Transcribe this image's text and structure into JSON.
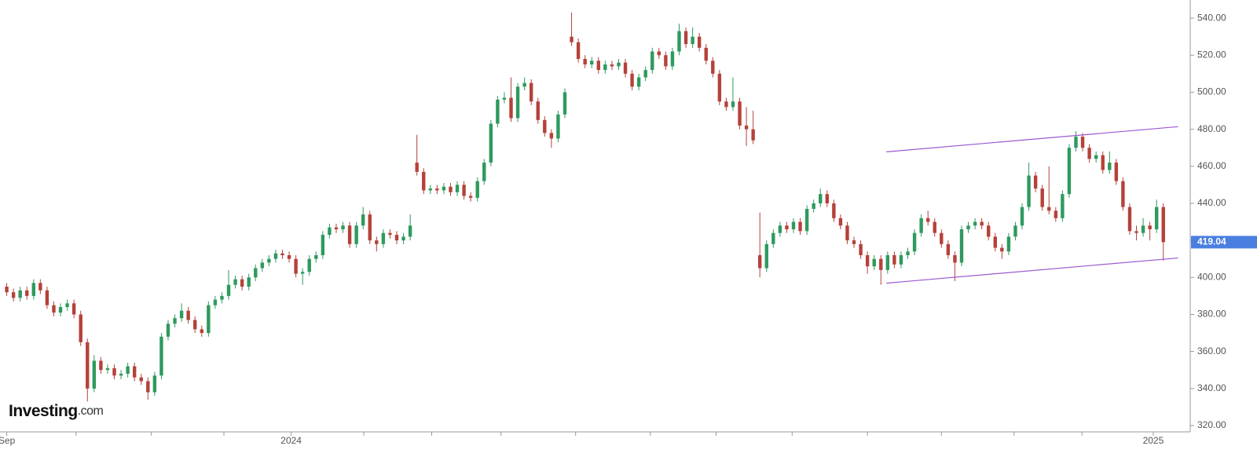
{
  "chart_data": {
    "type": "candlestick",
    "logo": {
      "name": "Investing",
      "suffix": ".com"
    },
    "up_color": "#2e9a5e",
    "down_color": "#b5413a",
    "candles": {
      "open": [
        395,
        392,
        389,
        393,
        390,
        397,
        393,
        385,
        381,
        384,
        386,
        380,
        365,
        340,
        355,
        350,
        351,
        347,
        348,
        352,
        346,
        344,
        338,
        347,
        368,
        375,
        378,
        382,
        377,
        372,
        370,
        385,
        388,
        390,
        396,
        399,
        395,
        400,
        405,
        408,
        410,
        413,
        412,
        410,
        402,
        403,
        410,
        412,
        423,
        427,
        426,
        428,
        418,
        428,
        434,
        420,
        418,
        424,
        423,
        420,
        422,
        462,
        457,
        447,
        448,
        447,
        449,
        446,
        450,
        444,
        443,
        452,
        462,
        483,
        496,
        497,
        486,
        503,
        505,
        495,
        485,
        478,
        475,
        488,
        530,
        527,
        518,
        515,
        517,
        512,
        515,
        514,
        516,
        510,
        503,
        508,
        512,
        522,
        520,
        514,
        522,
        533,
        526,
        530,
        524,
        517,
        510,
        495,
        492,
        495,
        482,
        480,
        412,
        405,
        418,
        424,
        428,
        426,
        430,
        425,
        437,
        440,
        445,
        440,
        432,
        428,
        420,
        418,
        412,
        406,
        410,
        404,
        412,
        407,
        412,
        414,
        424,
        432,
        430,
        424,
        418,
        412,
        408,
        426,
        428,
        430,
        428,
        422,
        416,
        414,
        422,
        428,
        438,
        455,
        448,
        438,
        436,
        432,
        445,
        470,
        476,
        470,
        464,
        466,
        458,
        462,
        452,
        438,
        425,
        424,
        428,
        426,
        438
      ],
      "high": [
        397,
        394,
        395,
        395,
        399,
        399,
        395,
        387,
        386,
        388,
        388,
        382,
        367,
        358,
        357,
        353,
        353,
        350,
        354,
        354,
        348,
        346,
        349,
        370,
        377,
        380,
        386,
        384,
        379,
        374,
        387,
        390,
        392,
        404,
        401,
        401,
        402,
        407,
        410,
        412,
        415,
        415,
        414,
        412,
        405,
        412,
        414,
        425,
        429,
        429,
        430,
        430,
        430,
        438,
        436,
        422,
        426,
        426,
        425,
        424,
        434,
        477,
        459,
        450,
        450,
        451,
        451,
        452,
        452,
        446,
        454,
        464,
        485,
        498,
        500,
        508,
        505,
        508,
        507,
        497,
        487,
        480,
        490,
        502,
        543,
        529,
        520,
        519,
        519,
        517,
        517,
        518,
        518,
        512,
        510,
        514,
        524,
        524,
        522,
        524,
        537,
        535,
        535,
        532,
        526,
        519,
        512,
        497,
        508,
        497,
        492,
        490,
        435,
        420,
        426,
        430,
        430,
        432,
        432,
        439,
        442,
        448,
        447,
        442,
        434,
        430,
        422,
        420,
        414,
        412,
        412,
        414,
        414,
        414,
        416,
        426,
        434,
        436,
        432,
        426,
        420,
        414,
        428,
        430,
        432,
        432,
        430,
        424,
        418,
        424,
        430,
        440,
        462,
        457,
        450,
        460,
        438,
        447,
        472,
        479,
        478,
        472,
        468,
        468,
        468,
        464,
        454,
        440,
        428,
        432,
        430,
        442,
        440
      ],
      "low": [
        390,
        387,
        387,
        388,
        388,
        391,
        383,
        379,
        379,
        382,
        378,
        363,
        333,
        338,
        348,
        348,
        345,
        345,
        346,
        344,
        342,
        334,
        336,
        345,
        366,
        373,
        376,
        375,
        370,
        368,
        368,
        383,
        386,
        388,
        394,
        393,
        393,
        398,
        403,
        406,
        408,
        410,
        408,
        400,
        396,
        401,
        408,
        410,
        421,
        424,
        424,
        416,
        416,
        426,
        418,
        414,
        416,
        421,
        418,
        418,
        420,
        455,
        445,
        445,
        445,
        445,
        444,
        444,
        442,
        441,
        441,
        450,
        460,
        481,
        494,
        484,
        484,
        501,
        493,
        483,
        476,
        470,
        473,
        486,
        525,
        516,
        513,
        513,
        510,
        510,
        512,
        512,
        508,
        501,
        501,
        506,
        510,
        518,
        512,
        512,
        520,
        524,
        524,
        522,
        515,
        508,
        493,
        490,
        490,
        480,
        471,
        472,
        400,
        403,
        416,
        422,
        424,
        424,
        423,
        423,
        435,
        438,
        438,
        430,
        426,
        418,
        416,
        410,
        402,
        404,
        396,
        402,
        405,
        405,
        410,
        412,
        422,
        428,
        422,
        416,
        410,
        398,
        406,
        424,
        426,
        426,
        420,
        414,
        410,
        412,
        420,
        426,
        436,
        446,
        436,
        434,
        430,
        430,
        443,
        468,
        468,
        462,
        462,
        456,
        456,
        450,
        436,
        423,
        420,
        422,
        420,
        424,
        409
      ],
      "close": [
        392,
        389,
        393,
        390,
        397,
        393,
        385,
        381,
        384,
        386,
        380,
        365,
        340,
        355,
        350,
        351,
        347,
        348,
        352,
        346,
        344,
        338,
        347,
        368,
        375,
        378,
        382,
        377,
        372,
        370,
        385,
        388,
        390,
        396,
        399,
        395,
        400,
        405,
        408,
        410,
        413,
        412,
        410,
        402,
        403,
        410,
        412,
        423,
        427,
        426,
        428,
        418,
        428,
        434,
        420,
        418,
        424,
        423,
        420,
        422,
        428,
        457,
        447,
        448,
        447,
        449,
        446,
        450,
        444,
        443,
        452,
        462,
        483,
        496,
        497,
        486,
        503,
        505,
        495,
        485,
        478,
        475,
        488,
        500,
        527,
        518,
        515,
        517,
        512,
        515,
        514,
        516,
        510,
        503,
        508,
        512,
        522,
        520,
        514,
        522,
        533,
        526,
        530,
        524,
        517,
        510,
        495,
        492,
        495,
        482,
        480,
        474,
        405,
        418,
        424,
        428,
        426,
        430,
        425,
        437,
        440,
        445,
        440,
        432,
        428,
        420,
        418,
        412,
        406,
        410,
        404,
        412,
        407,
        412,
        414,
        424,
        432,
        430,
        424,
        418,
        412,
        408,
        426,
        428,
        430,
        428,
        422,
        416,
        414,
        422,
        428,
        438,
        455,
        448,
        438,
        436,
        432,
        445,
        470,
        476,
        470,
        464,
        466,
        458,
        462,
        452,
        438,
        425,
        424,
        428,
        426,
        438,
        419.04
      ]
    },
    "trendlines": [
      {
        "x": [
          130.8,
          174.2
        ],
        "y": [
          467.8,
          481.4
        ]
      },
      {
        "x": [
          130.8,
          174.2
        ],
        "y": [
          396.9,
          410.5
        ]
      }
    ],
    "trendline_color": "#9b59d0",
    "last_price_color": "#4a7fe0",
    "xlim": [
      -1,
      176
    ],
    "xticks": [
      {
        "value": 0,
        "label": "Sep"
      },
      10.3,
      21.5,
      32.3,
      {
        "value": 42.3,
        "label": "2024"
      },
      53.1,
      63.2,
      73.5,
      84.6,
      95.7,
      105.5,
      116.8,
      128,
      139,
      149.8,
      159.9,
      {
        "value": 170.5,
        "label": "2025"
      }
    ],
    "ylim": [
      316.6,
      549.8
    ],
    "yticks": [
      {
        "value": 320,
        "label": "320.00"
      },
      {
        "value": 340,
        "label": "340.00"
      },
      {
        "value": 360,
        "label": "360.00"
      },
      {
        "value": 380,
        "label": "380.00"
      },
      {
        "value": 400,
        "label": "400.00"
      },
      {
        "value": 420,
        "label": "420.00"
      },
      {
        "value": 440,
        "label": "440.00"
      },
      {
        "value": 460,
        "label": "460.00"
      },
      {
        "value": 480,
        "label": "480.00"
      },
      {
        "value": 500,
        "label": "500.00"
      },
      {
        "value": 520,
        "label": "520.00"
      },
      {
        "value": 540,
        "label": "540.00"
      }
    ]
  }
}
